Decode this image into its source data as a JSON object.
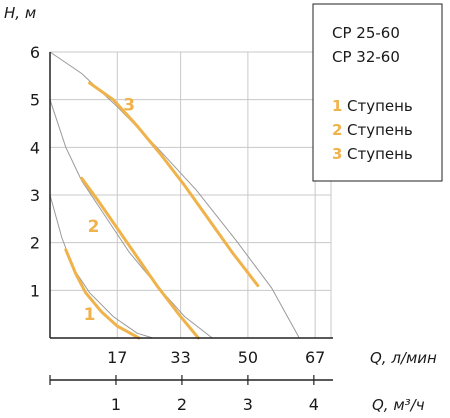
{
  "chart_data": {
    "type": "line",
    "ylabel": "H, м",
    "xlabel": "Q, л/мин",
    "x2label": "Q, м³/ч",
    "ylim": [
      0,
      6
    ],
    "xlim": [
      0,
      71
    ],
    "y_ticks": [
      "1",
      "2",
      "3",
      "4",
      "5",
      "6"
    ],
    "x_ticks": [
      "17",
      "33",
      "50",
      "67"
    ],
    "x2_ticks": [
      "1",
      "2",
      "3",
      "4"
    ],
    "grid": true,
    "legend": {
      "models": [
        "CP 25-60",
        "CP 32-60"
      ],
      "entries": [
        {
          "num": "1",
          "label": "Ступень"
        },
        {
          "num": "2",
          "label": "Ступень"
        },
        {
          "num": "3",
          "label": "Ступень"
        }
      ],
      "position": "top-right"
    },
    "colors": {
      "curve": "#f0b24a",
      "envelope": "#9a9a9a",
      "grid": "#c8c8c8",
      "axis": "#222222"
    },
    "series": [
      {
        "label_num": "1",
        "label_at": [
          10,
          0.5
        ],
        "x": [
          4,
          6.5,
          9,
          13,
          17,
          22.5
        ],
        "y": [
          1.85,
          1.35,
          0.95,
          0.55,
          0.25,
          0
        ]
      },
      {
        "label_num": "2",
        "label_at": [
          11,
          2.35
        ],
        "x": [
          8,
          12,
          17,
          22,
          27,
          33,
          37.5
        ],
        "y": [
          3.35,
          2.9,
          2.3,
          1.7,
          1.1,
          0.45,
          0
        ]
      },
      {
        "label_num": "3",
        "label_at": [
          20,
          4.9
        ],
        "x": [
          10,
          16,
          22,
          28,
          34,
          40,
          46,
          52.5
        ],
        "y": [
          5.35,
          5.0,
          4.45,
          3.85,
          3.2,
          2.5,
          1.8,
          1.1
        ]
      }
    ],
    "envelopes": [
      {
        "x": [
          0,
          3,
          6,
          10,
          16,
          22,
          26
        ],
        "y": [
          3.0,
          2.1,
          1.45,
          0.95,
          0.45,
          0.1,
          0
        ]
      },
      {
        "x": [
          0,
          4,
          8,
          14,
          20,
          27,
          34,
          41
        ],
        "y": [
          5.0,
          4.0,
          3.3,
          2.55,
          1.8,
          1.1,
          0.45,
          0
        ]
      },
      {
        "x": [
          0,
          8,
          17,
          27,
          37,
          47,
          56,
          63
        ],
        "y": [
          6.0,
          5.55,
          4.85,
          4.0,
          3.1,
          2.05,
          1.05,
          0
        ]
      }
    ]
  }
}
